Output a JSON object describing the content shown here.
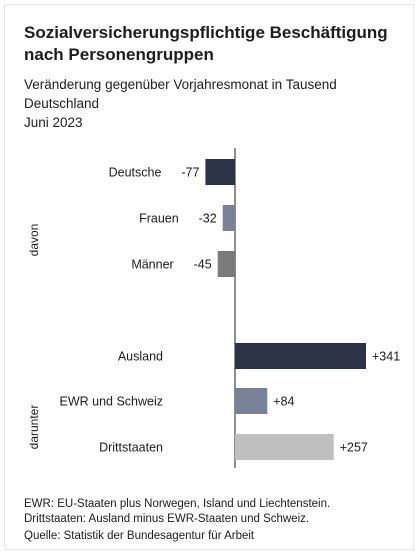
{
  "header": {
    "title": "Sozialversicherungspflichtige Beschäftigung nach Personengruppen",
    "subtitle": "Veränderung gegenüber Vorjahresmonat in Tausend",
    "region": "Deutschland",
    "period": "Juni 2023"
  },
  "chart_data": {
    "type": "bar",
    "orientation": "horizontal",
    "categories": [
      "Deutsche",
      "Frauen",
      "Männer",
      "Ausland",
      "EWR und Schweiz",
      "Drittstaaten"
    ],
    "values": [
      -77,
      -32,
      -45,
      341,
      84,
      257
    ],
    "value_labels": [
      "-77",
      "-32",
      "-45",
      "+341",
      "+84",
      "+257"
    ],
    "groups": [
      {
        "label": "davon",
        "categories": [
          "Frauen",
          "Männer"
        ]
      },
      {
        "label": "darunter",
        "categories": [
          "EWR und Schweiz",
          "Drittstaaten"
        ]
      }
    ],
    "bar_colors": [
      "#2d3346",
      "#7a8299",
      "#7b7b7b",
      "#2d3346",
      "#7a8299",
      "#c0c0c0"
    ],
    "grid": false,
    "legend": "none"
  },
  "footnotes": [
    "EWR: EU-Staaten plus Norwegen, Island und Liechtenstein.",
    "Drittstaaten: Ausland minus EWR-Staaten und Schweiz.",
    "Quelle: Statistik der Bundesagentur für Arbeit"
  ]
}
